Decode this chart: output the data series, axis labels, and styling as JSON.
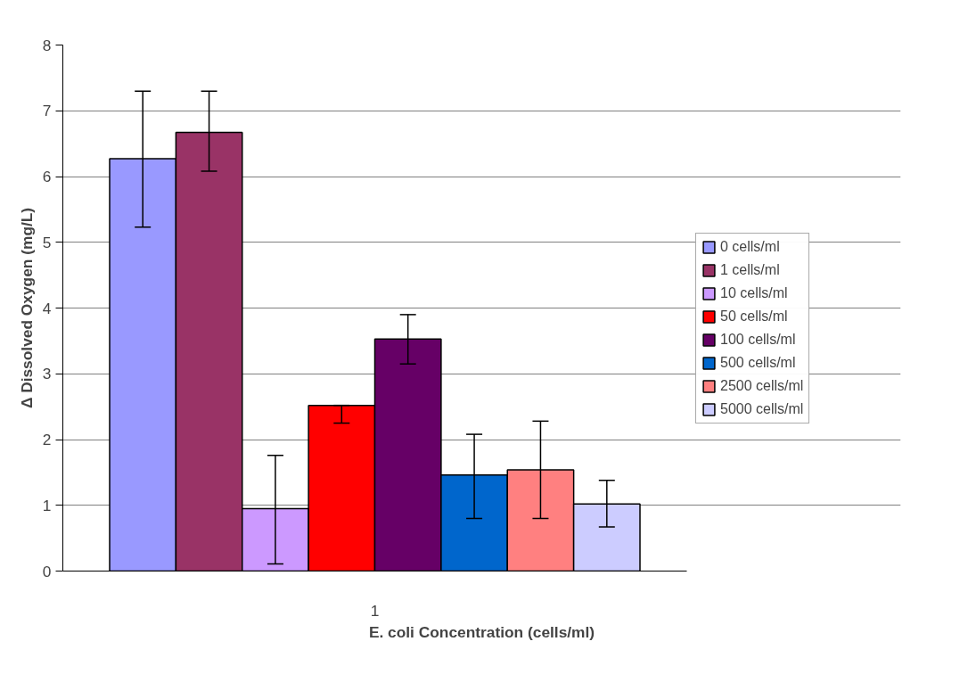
{
  "chart_data": {
    "type": "bar",
    "xlabel": "E. coli Concentration (cells/ml)",
    "ylabel": "Δ Dissolved Oxygen (mg/L)",
    "categories": [
      "1"
    ],
    "ylim": [
      0,
      8
    ],
    "yticks": [
      0,
      1,
      2,
      3,
      4,
      5,
      6,
      7,
      8
    ],
    "grid": "y",
    "legend": "right",
    "series": [
      {
        "name": "0 cells/ml",
        "color": "#9999ff",
        "values": [
          6.27
        ],
        "errors": [
          [
            5.23,
            7.3
          ]
        ]
      },
      {
        "name": "1 cells/ml",
        "color": "#993366",
        "values": [
          6.67
        ],
        "errors": [
          [
            6.08,
            7.3
          ]
        ]
      },
      {
        "name": "10 cells/ml",
        "color": "#cc99ff",
        "values": [
          0.95
        ],
        "errors": [
          [
            0.11,
            1.76
          ]
        ]
      },
      {
        "name": "50 cells/ml",
        "color": "#ff0000",
        "values": [
          2.52
        ],
        "errors": [
          [
            2.25,
            2.52
          ]
        ]
      },
      {
        "name": "100 cells/ml",
        "color": "#660066",
        "values": [
          3.53
        ],
        "errors": [
          [
            3.15,
            3.9
          ]
        ]
      },
      {
        "name": "500 cells/ml",
        "color": "#0066cc",
        "values": [
          1.46
        ],
        "errors": [
          [
            0.8,
            2.08
          ]
        ]
      },
      {
        "name": "2500 cells/ml",
        "color": "#ff8080",
        "values": [
          1.54
        ],
        "errors": [
          [
            0.8,
            2.28
          ]
        ]
      },
      {
        "name": "5000 cells/ml",
        "color": "#ccccff",
        "values": [
          1.02
        ],
        "errors": [
          [
            0.67,
            1.38
          ]
        ]
      }
    ]
  }
}
